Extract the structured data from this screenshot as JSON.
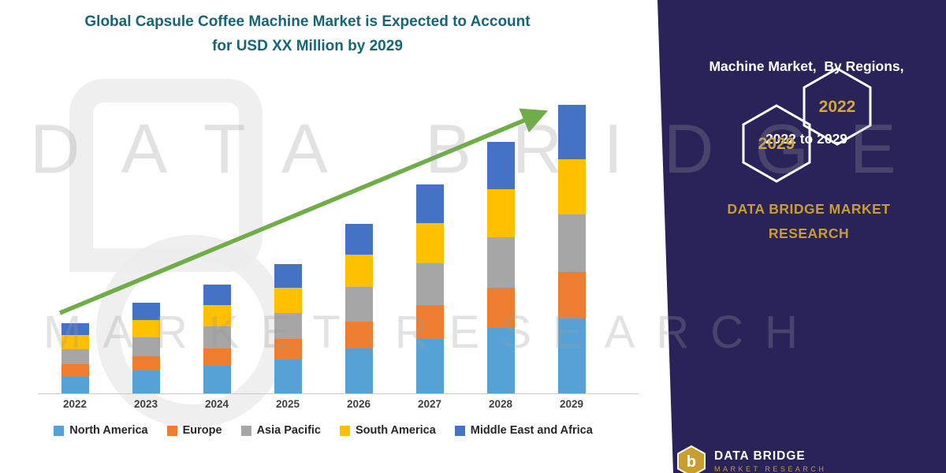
{
  "page": {
    "background": "#ffffff"
  },
  "title": {
    "line1": "Global Capsule Coffee Machine Market is Expected to Account",
    "line2": "for USD XX Million by 2029",
    "color": "#166577"
  },
  "watermark": {
    "line1": "DATA BRIDGE",
    "line2": "MARKET RESEARCH"
  },
  "side_panel": {
    "background": "#2A2359",
    "heading_line1": "Machine Market,  By Regions,",
    "heading_line2": "2022 to 2029",
    "hexagons": [
      {
        "year": "2029"
      },
      {
        "year": "2022"
      }
    ],
    "brand_line1": "DATA BRIDGE MARKET",
    "brand_line2": "RESEARCH",
    "accent_color": "#C89E2E"
  },
  "footer_logo": {
    "letter": "b",
    "brand": "DATA BRIDGE",
    "sub": "MARKET RESEARCH"
  },
  "chart_data": {
    "type": "bar",
    "stacked": true,
    "title": "Global Capsule Coffee Machine Market is Expected to Account for USD XX Million by 2029",
    "categories": [
      "2022",
      "2023",
      "2024",
      "2025",
      "2026",
      "2027",
      "2028",
      "2029"
    ],
    "series": [
      {
        "name": "North America",
        "color": "#56A2D6",
        "values": [
          22,
          30,
          36,
          44,
          58,
          70,
          84,
          96
        ]
      },
      {
        "name": "Europe",
        "color": "#ED7D31",
        "values": [
          16,
          18,
          22,
          26,
          34,
          42,
          50,
          58
        ]
      },
      {
        "name": "Asia Pacific",
        "color": "#A6A6A6",
        "values": [
          19,
          24,
          28,
          33,
          43,
          53,
          64,
          73
        ]
      },
      {
        "name": "South America",
        "color": "#FFC000",
        "values": [
          18,
          22,
          26,
          31,
          41,
          51,
          61,
          70
        ]
      },
      {
        "name": "Middle East and Africa",
        "color": "#4472C4",
        "values": [
          15,
          21,
          26,
          30,
          39,
          49,
          59,
          68
        ]
      }
    ],
    "totals": [
      90,
      115,
      138,
      164,
      215,
      265,
      318,
      365
    ],
    "xlabel": "",
    "ylabel": "",
    "ylim": [
      0,
      400
    ],
    "y_axis_visible": false,
    "grid": false,
    "legend_position": "bottom",
    "trend_arrow": true,
    "trend_arrow_color": "#6EAD47"
  }
}
